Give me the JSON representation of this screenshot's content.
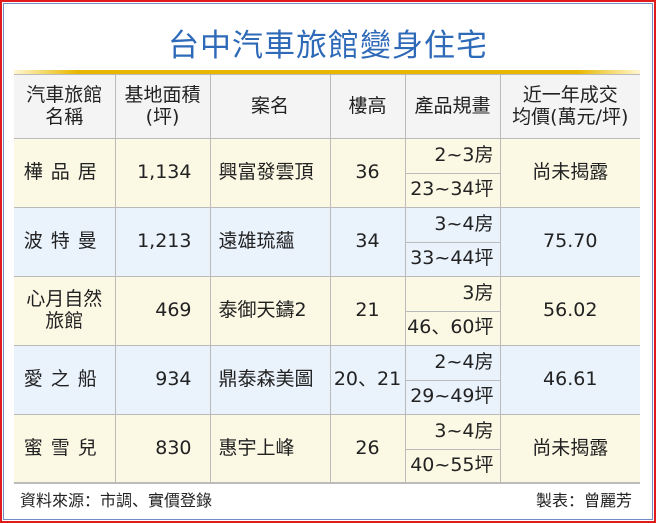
{
  "title": "台中汽車旅館變身住宅",
  "chart_data": {
    "type": "table",
    "title": "台中汽車旅館變身住宅",
    "columns": [
      "汽車旅館名稱",
      "基地面積(坪)",
      "案名",
      "樓高",
      "產品規畫",
      "近一年成交均價(萬元/坪)"
    ],
    "column_lines": [
      [
        "汽車旅館",
        "名稱"
      ],
      [
        "基地面積",
        "(坪)"
      ],
      [
        "案名"
      ],
      [
        "樓高"
      ],
      [
        "產品規畫"
      ],
      [
        "近一年成交",
        "均價(萬元/坪)"
      ]
    ],
    "rows": [
      {
        "motel": "樺品居",
        "area": "1,134",
        "project": "興富發雲頂",
        "floors": "36",
        "rooms": "2~3房",
        "size": "23~34坪",
        "price": "尚未揭露"
      },
      {
        "motel": "波特曼",
        "area": "1,213",
        "project": "遠雄琉蘊",
        "floors": "34",
        "rooms": "3~4房",
        "size": "33~44坪",
        "price": "75.70"
      },
      {
        "motel": "心月自然旅館",
        "motel_lines": [
          "心月自然",
          "旅館"
        ],
        "area": "469",
        "project": "泰御天鑄2",
        "floors": "21",
        "rooms": "3房",
        "size": "46、60坪",
        "price": "56.02"
      },
      {
        "motel": "愛之船",
        "area": "934",
        "project": "鼎泰森美圖",
        "floors": "20、21",
        "rooms": "2~4房",
        "size": "29~49坪",
        "price": "46.61"
      },
      {
        "motel": "蜜雪兒",
        "area": "830",
        "project": "惠宇上峰",
        "floors": "26",
        "rooms": "3~4房",
        "size": "40~55坪",
        "price": "尚未揭露"
      }
    ]
  },
  "footer": {
    "source": "資料來源：市調、實價登錄",
    "author": "製表：曾麗芳"
  },
  "colors": {
    "title": "#2e6ab8",
    "border": "#e01b1b",
    "row_cream": "#fbf8e4",
    "row_blue": "#eaf2fc",
    "accent_line": "#e8b800"
  }
}
